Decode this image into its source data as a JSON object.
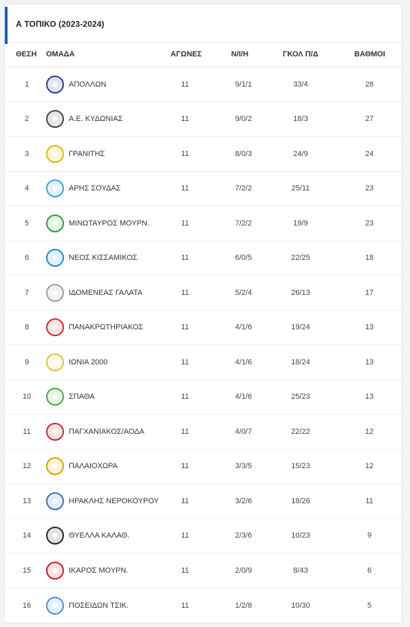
{
  "title": "Α ΤΟΠΙΚΟ (2023-2024)",
  "headers": {
    "pos": "ΘΕΣΗ",
    "team": "ΟΜΑΔΑ",
    "games": "ΑΓΩΝΕΣ",
    "wdl": "Ν/Ι/Η",
    "goals": "ΓΚΟΛ Π/Δ",
    "points": "ΒΑΘΜΟΙ"
  },
  "rows": [
    {
      "pos": "1",
      "team": "ΑΠΟΛΛΩΝ",
      "games": "11",
      "wdl": "9/1/1",
      "goals": "33/4",
      "points": "28",
      "logo_icon": "apollon-crest-icon",
      "color": "#2b3a8f"
    },
    {
      "pos": "2",
      "team": "Α.Ε. ΚΥΔΩΝΙΑΣ",
      "games": "11",
      "wdl": "9/0/2",
      "goals": "18/3",
      "points": "27",
      "logo_icon": "ae-kydonias-crest-icon",
      "color": "#444444"
    },
    {
      "pos": "3",
      "team": "ΓΡΑΝΙΤΗΣ",
      "games": "11",
      "wdl": "8/0/3",
      "goals": "24/9",
      "points": "24",
      "logo_icon": "granitis-crest-icon",
      "color": "#e0b400"
    },
    {
      "pos": "4",
      "team": "ΑΡΗΣ ΣΟΥΔΑΣ",
      "games": "11",
      "wdl": "7/2/2",
      "goals": "25/11",
      "points": "23",
      "logo_icon": "aris-soudas-crest-icon",
      "color": "#3aa0d8"
    },
    {
      "pos": "5",
      "team": "ΜΙΝΩΤΑΥΡΟΣ ΜΟΥΡΝ.",
      "games": "11",
      "wdl": "7/2/2",
      "goals": "19/9",
      "points": "23",
      "logo_icon": "minotavros-crest-icon",
      "color": "#2e9e3e"
    },
    {
      "pos": "6",
      "team": "ΝΕΟΣ ΚΙΣΣΑΜΙΚΟΣ",
      "games": "11",
      "wdl": "6/0/5",
      "goals": "22/25",
      "points": "18",
      "logo_icon": "neos-kissamikos-crest-icon",
      "color": "#1e88d0"
    },
    {
      "pos": "7",
      "team": "ΙΔΟΜΕΝΕΑΣ ΓΑΛΑΤΑ",
      "games": "11",
      "wdl": "5/2/4",
      "goals": "26/13",
      "points": "17",
      "logo_icon": "idomeneas-crest-icon",
      "color": "#9aa0a6"
    },
    {
      "pos": "8",
      "team": "ΠΑΝΑΚΡΩΤΗΡΙΑΚΟΣ",
      "games": "11",
      "wdl": "4/1/6",
      "goals": "19/24",
      "points": "13",
      "logo_icon": "panakrotiriakos-crest-icon",
      "color": "#d12a2a"
    },
    {
      "pos": "9",
      "team": "ΙΩΝΙΑ 2000",
      "games": "11",
      "wdl": "4/1/6",
      "goals": "18/24",
      "points": "13",
      "logo_icon": "ionia-crest-icon",
      "color": "#e3c23a"
    },
    {
      "pos": "10",
      "team": "ΣΠΑΘΑ",
      "games": "11",
      "wdl": "4/1/6",
      "goals": "25/23",
      "points": "13",
      "logo_icon": "spatha-crest-icon",
      "color": "#3fae3f"
    },
    {
      "pos": "11",
      "team": "ΠΑΓΧΑΝΙΑΚΟΣ/ΑΟΔΑ",
      "games": "11",
      "wdl": "4/0/7",
      "goals": "22/22",
      "points": "12",
      "logo_icon": "pagchaniakos-crest-icon",
      "color": "#c0283a"
    },
    {
      "pos": "12",
      "team": "ΠΑΛΑΙΟΧΩΡΑ",
      "games": "11",
      "wdl": "3/3/5",
      "goals": "15/23",
      "points": "12",
      "logo_icon": "palaiochora-crest-icon",
      "color": "#d4a200"
    },
    {
      "pos": "13",
      "team": "ΗΡΑΚΛΗΣ ΝΕΡΟΚΟΥΡΟΥ",
      "games": "11",
      "wdl": "3/2/6",
      "goals": "18/26",
      "points": "11",
      "logo_icon": "iraklis-crest-icon",
      "color": "#3d6fb5"
    },
    {
      "pos": "14",
      "team": "ΘΥΕΛΛΑ ΚΑΛΑΘ.",
      "games": "11",
      "wdl": "2/3/6",
      "goals": "10/23",
      "points": "9",
      "logo_icon": "thyella-crest-icon",
      "color": "#222222"
    },
    {
      "pos": "15",
      "team": "ΙΚΑΡΟΣ ΜΟΥΡΝ.",
      "games": "11",
      "wdl": "2/0/9",
      "goals": "8/43",
      "points": "6",
      "logo_icon": "ikaros-crest-icon",
      "color": "#c81e1e"
    },
    {
      "pos": "16",
      "team": "ΠΟΣΕΙΔΩΝ ΤΣΙΚ.",
      "games": "11",
      "wdl": "1/2/8",
      "goals": "10/30",
      "points": "5",
      "logo_icon": "poseidon-crest-icon",
      "color": "#4a8fd4"
    }
  ]
}
